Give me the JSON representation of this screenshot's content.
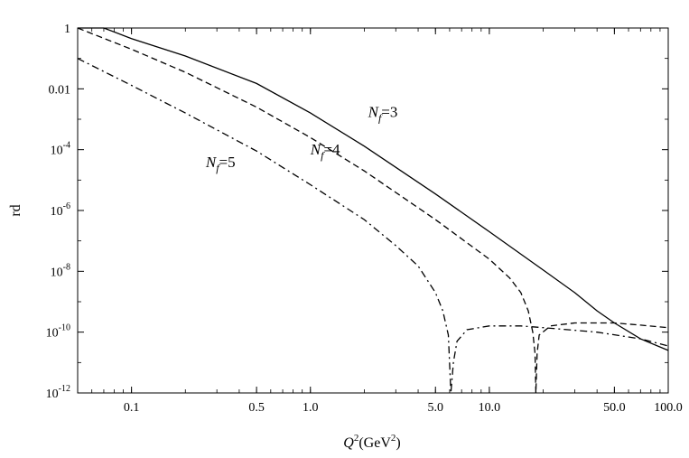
{
  "chart_data": {
    "type": "line",
    "title": "",
    "xlabel": "Q^2 (GeV^2)",
    "xlabel_main": "Q",
    "xlabel_sup": "2",
    "xlabel_unit_open": "(GeV",
    "xlabel_unit_sup": "2",
    "xlabel_unit_close": ")",
    "ylabel": "rd",
    "x_scale": "log",
    "y_scale": "log",
    "xlim": [
      0.05,
      100
    ],
    "ylim": [
      1e-12,
      1
    ],
    "x_ticks": [
      {
        "value": 0.1,
        "label": "0.1"
      },
      {
        "value": 0.5,
        "label": "0.5"
      },
      {
        "value": 1.0,
        "label": "1.0"
      },
      {
        "value": 5.0,
        "label": "5.0"
      },
      {
        "value": 10.0,
        "label": "10.0"
      },
      {
        "value": 50.0,
        "label": "50.0"
      },
      {
        "value": 100.0,
        "label": "100.0"
      }
    ],
    "y_ticks": [
      {
        "value": 1,
        "base": "1",
        "exp": ""
      },
      {
        "value": 0.01,
        "base": "0.01",
        "exp": ""
      },
      {
        "value": 0.0001,
        "base": "10",
        "exp": "-4"
      },
      {
        "value": 1e-06,
        "base": "10",
        "exp": "-6"
      },
      {
        "value": 1e-08,
        "base": "10",
        "exp": "-8"
      },
      {
        "value": 1e-10,
        "base": "10",
        "exp": "-10"
      },
      {
        "value": 1e-12,
        "base": "10",
        "exp": "-12"
      }
    ],
    "grid": false,
    "legend": "none",
    "series": [
      {
        "label_main": "N",
        "label_sub": "f",
        "label_value": "=3",
        "line_style": "solid",
        "label_at": [
          2.1,
          0.0012
        ],
        "points": [
          [
            0.05,
            3.5
          ],
          [
            0.07,
            1.0
          ],
          [
            0.1,
            0.45
          ],
          [
            0.2,
            0.12
          ],
          [
            0.5,
            0.015
          ],
          [
            1.0,
            0.0016
          ],
          [
            2.0,
            0.00013
          ],
          [
            5.0,
            3.5e-06
          ],
          [
            10.0,
            2e-07
          ],
          [
            20.0,
            1.1e-08
          ],
          [
            30.0,
            2e-09
          ],
          [
            40.0,
            5e-10
          ],
          [
            50.0,
            2e-10
          ],
          [
            70.0,
            6e-11
          ],
          [
            100.0,
            2.5e-11
          ]
        ]
      },
      {
        "label_main": "N",
        "label_sub": "f",
        "label_value": "=4",
        "line_style": "dashed",
        "label_at": [
          1.0,
          7e-05
        ],
        "points": [
          [
            0.05,
            1.0
          ],
          [
            0.1,
            0.2
          ],
          [
            0.2,
            0.035
          ],
          [
            0.5,
            0.0025
          ],
          [
            1.0,
            0.00025
          ],
          [
            2.0,
            2e-05
          ],
          [
            5.0,
            5e-07
          ],
          [
            10.0,
            2.5e-08
          ],
          [
            13.0,
            6e-09
          ],
          [
            15.0,
            2e-09
          ],
          [
            16.5,
            5e-10
          ],
          [
            17.5,
            1e-10
          ],
          [
            18.0,
            2e-11
          ],
          [
            18.2,
            1e-12
          ],
          [
            18.5,
            2e-11
          ],
          [
            19.0,
            8e-11
          ],
          [
            22.0,
            1.6e-10
          ],
          [
            30.0,
            2e-10
          ],
          [
            50.0,
            2e-10
          ],
          [
            70.0,
            1.7e-10
          ],
          [
            100.0,
            1.4e-10
          ]
        ]
      },
      {
        "label_main": "N",
        "label_sub": "f",
        "label_value": "=5",
        "line_style": "dashdot",
        "label_at": [
          0.26,
          2.7e-05
        ],
        "points": [
          [
            0.05,
            0.1
          ],
          [
            0.1,
            0.013
          ],
          [
            0.2,
            0.0016
          ],
          [
            0.5,
            9e-05
          ],
          [
            1.0,
            7e-06
          ],
          [
            2.0,
            5e-07
          ],
          [
            3.0,
            7e-08
          ],
          [
            4.0,
            1.5e-08
          ],
          [
            5.0,
            2e-09
          ],
          [
            5.5,
            5e-10
          ],
          [
            5.9,
            8e-11
          ],
          [
            6.1,
            1e-12
          ],
          [
            6.3,
            1e-11
          ],
          [
            6.6,
            5e-11
          ],
          [
            7.5,
            1.2e-10
          ],
          [
            10.0,
            1.6e-10
          ],
          [
            15.0,
            1.6e-10
          ],
          [
            20.0,
            1.4e-10
          ],
          [
            40.0,
            1e-10
          ],
          [
            70.0,
            6e-11
          ],
          [
            100.0,
            3.5e-11
          ]
        ]
      }
    ]
  }
}
